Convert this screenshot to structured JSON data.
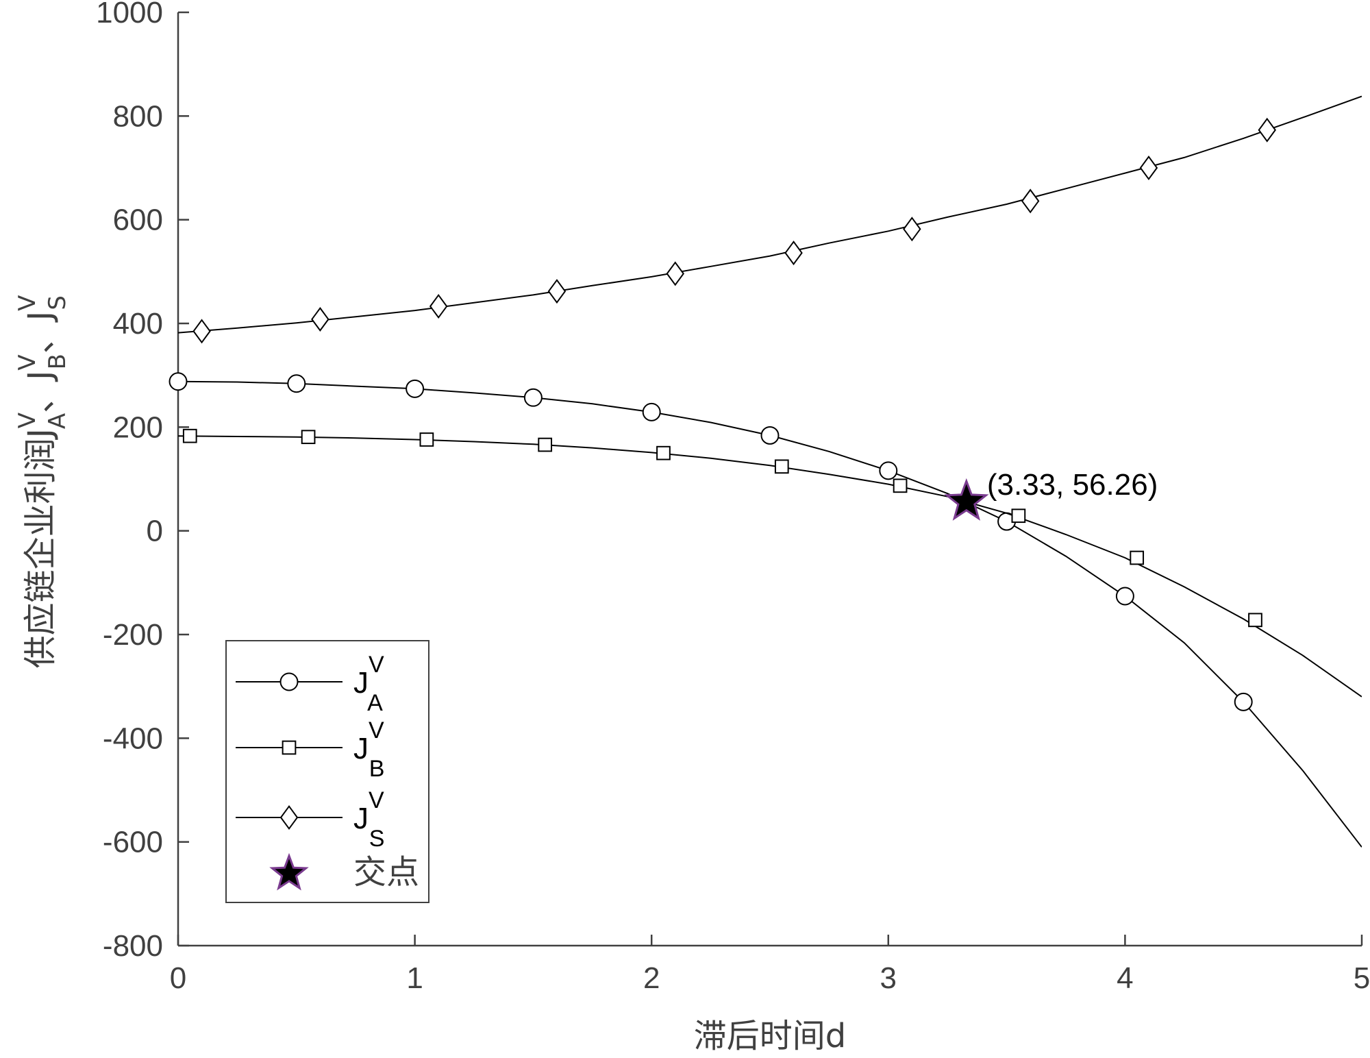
{
  "chart_data": {
    "type": "line",
    "xlabel": "滞后时间d",
    "ylabel_main": "供应链企业利润",
    "ylabel_terms": [
      {
        "base": "J",
        "sup": "V",
        "sub": "A",
        "after": "、"
      },
      {
        "base": "J",
        "sup": "V",
        "sub": "B",
        "after": "、"
      },
      {
        "base": "J",
        "sup": "V",
        "sub": "S",
        "after": ""
      }
    ],
    "xlim": [
      0,
      5
    ],
    "ylim": [
      -800,
      1000
    ],
    "xticks": [
      0,
      1,
      2,
      3,
      4,
      5
    ],
    "xtick_labels": [
      "0",
      "1",
      "2",
      "3",
      "4",
      "5"
    ],
    "yticks": [
      -800,
      -600,
      -400,
      -200,
      0,
      200,
      400,
      600,
      800,
      1000
    ],
    "ytick_labels": [
      "-800",
      "-600",
      "-400",
      "-200",
      "0",
      "200",
      "400",
      "600",
      "800",
      "1000"
    ],
    "grid": false,
    "legend_position": "bottom-left",
    "series": [
      {
        "name": "J_A^V",
        "legend": {
          "base": "J",
          "sup": "V",
          "sub": "A"
        },
        "marker": "circle",
        "color": "#000000",
        "x": [
          0,
          0.25,
          0.5,
          0.75,
          1.0,
          1.25,
          1.5,
          1.75,
          2.0,
          2.25,
          2.5,
          2.75,
          3.0,
          3.25,
          3.5,
          3.75,
          4.0,
          4.25,
          4.5,
          4.75,
          5.0
        ],
        "values": [
          288,
          287,
          284,
          279,
          274,
          266,
          257,
          245,
          229,
          209,
          184,
          153,
          116,
          72,
          18,
          -49,
          -126,
          -216,
          -330,
          -462,
          -610
        ],
        "marker_x": [
          0,
          0.5,
          1.0,
          1.5,
          2.0,
          2.5,
          3.0,
          3.5,
          4.0,
          4.5
        ],
        "marker_y": [
          288,
          284,
          274,
          257,
          229,
          184,
          116,
          18,
          -126,
          -330
        ]
      },
      {
        "name": "J_B^V",
        "legend": {
          "base": "J",
          "sup": "V",
          "sub": "B"
        },
        "marker": "square",
        "color": "#000000",
        "x": [
          0,
          0.25,
          0.5,
          0.75,
          1.0,
          1.25,
          1.5,
          1.75,
          2.0,
          2.25,
          2.5,
          2.75,
          3.0,
          3.25,
          3.5,
          3.75,
          4.0,
          4.25,
          4.5,
          4.75,
          5.0
        ],
        "values": [
          183,
          182,
          181,
          179,
          176,
          172,
          167,
          160,
          151,
          140,
          126,
          109,
          90,
          66,
          34,
          -7,
          -52,
          -108,
          -170,
          -240,
          -320
        ],
        "marker_x": [
          0.05,
          0.55,
          1.05,
          1.55,
          2.05,
          2.55,
          3.05,
          3.55,
          4.05,
          4.55
        ],
        "marker_y": [
          183,
          181,
          176,
          166,
          150,
          124,
          87,
          29,
          -52,
          -172
        ]
      },
      {
        "name": "J_S^V",
        "legend": {
          "base": "J",
          "sup": "V",
          "sub": "S"
        },
        "marker": "diamond",
        "color": "#000000",
        "x": [
          0,
          0.25,
          0.5,
          0.75,
          1.0,
          1.25,
          1.5,
          1.75,
          2.0,
          2.25,
          2.5,
          2.75,
          3.0,
          3.25,
          3.5,
          3.75,
          4.0,
          4.25,
          4.5,
          4.75,
          5.0
        ],
        "values": [
          382,
          391,
          401,
          413,
          425,
          440,
          455,
          473,
          490,
          510,
          530,
          555,
          578,
          605,
          630,
          660,
          690,
          720,
          757,
          797,
          838
        ],
        "marker_x": [
          0.1,
          0.6,
          1.1,
          1.6,
          2.1,
          2.6,
          3.1,
          3.6,
          4.1,
          4.6
        ],
        "marker_y": [
          385,
          408,
          433,
          462,
          496,
          536,
          582,
          636,
          700,
          773
        ]
      },
      {
        "name": "交点",
        "legend": {
          "base": "交点",
          "sup": "",
          "sub": ""
        },
        "marker": "star",
        "color": "#000000",
        "edge_color": "#7a3b8f",
        "x": [
          3.33
        ],
        "values": [
          56.26
        ]
      }
    ],
    "annotations": [
      {
        "text": "(3.33, 56.26)",
        "x": 3.33,
        "y": 56.26
      }
    ]
  }
}
